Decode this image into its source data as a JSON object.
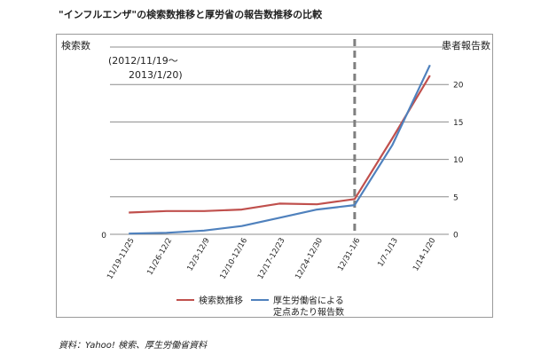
{
  "title": "\"インフルエンザ\"の検索数推移と厚労省の報告数推移の比較",
  "source": "資料：Yahoo! 検索、厚生労働省資料",
  "colors": {
    "search": "#c0504d",
    "reports": "#4f81bd",
    "grid": "#8c8c8c",
    "marker": "#7f7f7f"
  },
  "chart_data": {
    "type": "line",
    "annotation": [
      "(2012/11/19〜",
      "2013/1/20)"
    ],
    "y_left_label": "検索数",
    "y_right_label": "患者報告数",
    "categories": [
      "11/19-11/25",
      "11/26-12/2",
      "12/3-12/9",
      "12/10-12/16",
      "12/17-12/23",
      "12/24-12/30",
      "12/31-1/6",
      "1/7-1/13",
      "1/14-1/20"
    ],
    "left_axis": {
      "ticks": [
        "0"
      ]
    },
    "right_axis": {
      "ylim": [
        0,
        25
      ],
      "ticks": [
        0,
        5,
        10,
        15,
        20
      ]
    },
    "vertical_marker_category": "12/31-1/6",
    "series": [
      {
        "name": "検索数推移",
        "axis": "right",
        "values": [
          2.9,
          3.1,
          3.1,
          3.3,
          4.1,
          4.0,
          4.7,
          12.8,
          21.2
        ]
      },
      {
        "name": "厚生労働省による\n定点あたり報告数",
        "axis": "right",
        "values": [
          0.1,
          0.2,
          0.5,
          1.1,
          2.2,
          3.3,
          3.9,
          11.9,
          22.6
        ]
      }
    ],
    "legend": {
      "position": "bottom",
      "entries": [
        "検索数推移",
        "厚生労働省による",
        "定点あたり報告数"
      ]
    }
  }
}
